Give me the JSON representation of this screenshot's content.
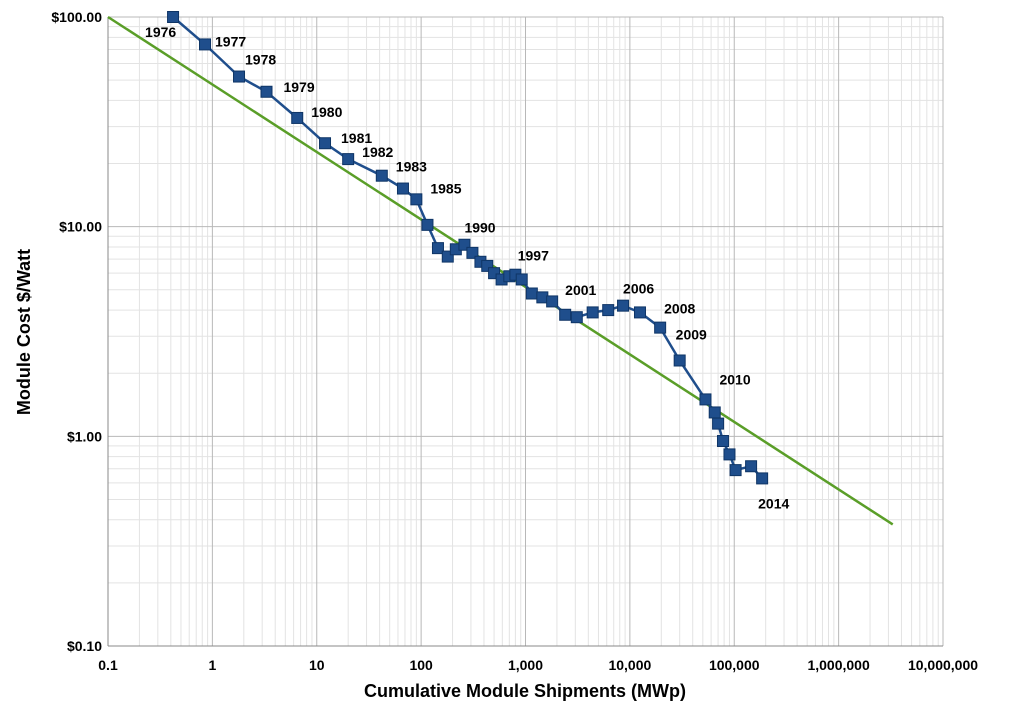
{
  "chart_data": {
    "type": "line",
    "xlabel": "Cumulative Module Shipments (MWp)",
    "ylabel": "Module Cost $/Watt",
    "x_scale": "log",
    "y_scale": "log",
    "xlim": [
      0.1,
      10000000
    ],
    "ylim": [
      0.1,
      100
    ],
    "grid": true,
    "x_ticks": [
      0.1,
      1,
      10,
      100,
      1000,
      10000,
      100000,
      1000000,
      10000000
    ],
    "x_tick_labels": [
      "0.1",
      "1",
      "10",
      "100",
      "1,000",
      "10,000",
      "100,000",
      "1,000,000",
      "10,000,000"
    ],
    "y_ticks": [
      0.1,
      1,
      10,
      100
    ],
    "y_tick_labels": [
      "$0.10",
      "$1.00",
      "$10.00",
      "$100.00"
    ],
    "series": [
      {
        "color": "#1f4e8c",
        "marker": "square",
        "points": [
          {
            "x": 0.42,
            "y": 100,
            "label": "1976"
          },
          {
            "x": 0.85,
            "y": 74,
            "label": "1977"
          },
          {
            "x": 1.8,
            "y": 52,
            "label": "1978"
          },
          {
            "x": 3.3,
            "y": 44,
            "label": "1979"
          },
          {
            "x": 6.5,
            "y": 33,
            "label": "1980"
          },
          {
            "x": 12,
            "y": 25,
            "label": "1981"
          },
          {
            "x": 20,
            "y": 21,
            "label": "1982"
          },
          {
            "x": 42,
            "y": 17.5,
            "label": "1983"
          },
          {
            "x": 67,
            "y": 15.2,
            "label": ""
          },
          {
            "x": 90,
            "y": 13.5,
            "label": "1985"
          },
          {
            "x": 115,
            "y": 10.2,
            "label": ""
          },
          {
            "x": 145,
            "y": 7.9,
            "label": ""
          },
          {
            "x": 180,
            "y": 7.2,
            "label": ""
          },
          {
            "x": 215,
            "y": 7.8,
            "label": ""
          },
          {
            "x": 260,
            "y": 8.2,
            "label": "1990"
          },
          {
            "x": 310,
            "y": 7.5,
            "label": ""
          },
          {
            "x": 370,
            "y": 6.8,
            "label": ""
          },
          {
            "x": 430,
            "y": 6.5,
            "label": ""
          },
          {
            "x": 500,
            "y": 6.0,
            "label": ""
          },
          {
            "x": 590,
            "y": 5.6,
            "label": ""
          },
          {
            "x": 700,
            "y": 5.8,
            "label": ""
          },
          {
            "x": 800,
            "y": 5.9,
            "label": ""
          },
          {
            "x": 920,
            "y": 5.6,
            "label": "1997"
          },
          {
            "x": 1150,
            "y": 4.8,
            "label": ""
          },
          {
            "x": 1450,
            "y": 4.6,
            "label": ""
          },
          {
            "x": 1800,
            "y": 4.4,
            "label": ""
          },
          {
            "x": 2400,
            "y": 3.8,
            "label": "2001"
          },
          {
            "x": 3100,
            "y": 3.7,
            "label": ""
          },
          {
            "x": 4400,
            "y": 3.9,
            "label": ""
          },
          {
            "x": 6200,
            "y": 4.0,
            "label": ""
          },
          {
            "x": 8600,
            "y": 4.2,
            "label": "2006"
          },
          {
            "x": 12500,
            "y": 3.9,
            "label": ""
          },
          {
            "x": 19500,
            "y": 3.3,
            "label": "2008"
          },
          {
            "x": 30000,
            "y": 2.3,
            "label": "2009"
          },
          {
            "x": 53000,
            "y": 1.5,
            "label": "2010"
          },
          {
            "x": 65000,
            "y": 1.3,
            "label": ""
          },
          {
            "x": 70000,
            "y": 1.15,
            "label": ""
          },
          {
            "x": 78000,
            "y": 0.95,
            "label": ""
          },
          {
            "x": 90000,
            "y": 0.82,
            "label": ""
          },
          {
            "x": 103000,
            "y": 0.69,
            "label": ""
          },
          {
            "x": 145000,
            "y": 0.72,
            "label": ""
          },
          {
            "x": 185000,
            "y": 0.63,
            "label": "2014"
          }
        ]
      },
      {
        "color": "#5a9e28",
        "type": "trendline",
        "points": [
          {
            "x": 0.1,
            "y": 100
          },
          {
            "x": 3300000,
            "y": 0.38
          }
        ]
      }
    ]
  }
}
